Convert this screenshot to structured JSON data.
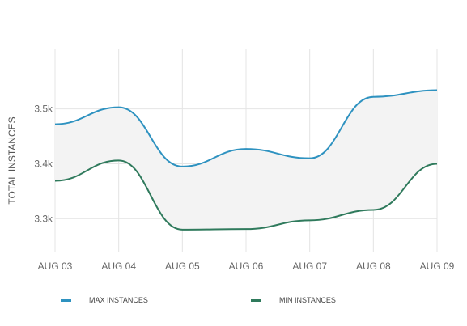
{
  "chart_data": {
    "type": "line",
    "title": "",
    "xlabel": "",
    "ylabel": "TOTAL INSTANCES",
    "categories": [
      "AUG 03",
      "AUG 04",
      "AUG 05",
      "AUG 06",
      "AUG 07",
      "AUG 08",
      "AUG 09"
    ],
    "series": [
      {
        "name": "MAX INSTANCES",
        "color": "#2e92c0",
        "values": [
          3472,
          3503,
          3395,
          3427,
          3410,
          3522,
          3534
        ]
      },
      {
        "name": "MIN INSTANCES",
        "color": "#2f7a5c",
        "values": [
          3369,
          3406,
          3280,
          3281,
          3297,
          3316,
          3400
        ]
      }
    ],
    "yticks": [
      3300,
      3400,
      3500
    ],
    "ytick_labels": [
      "3.3k",
      "3.4k",
      "3.5k"
    ],
    "ylim": [
      3240,
      3610
    ],
    "band_fill": "#f3f3f3",
    "grid": true,
    "legend_position": "bottom"
  }
}
